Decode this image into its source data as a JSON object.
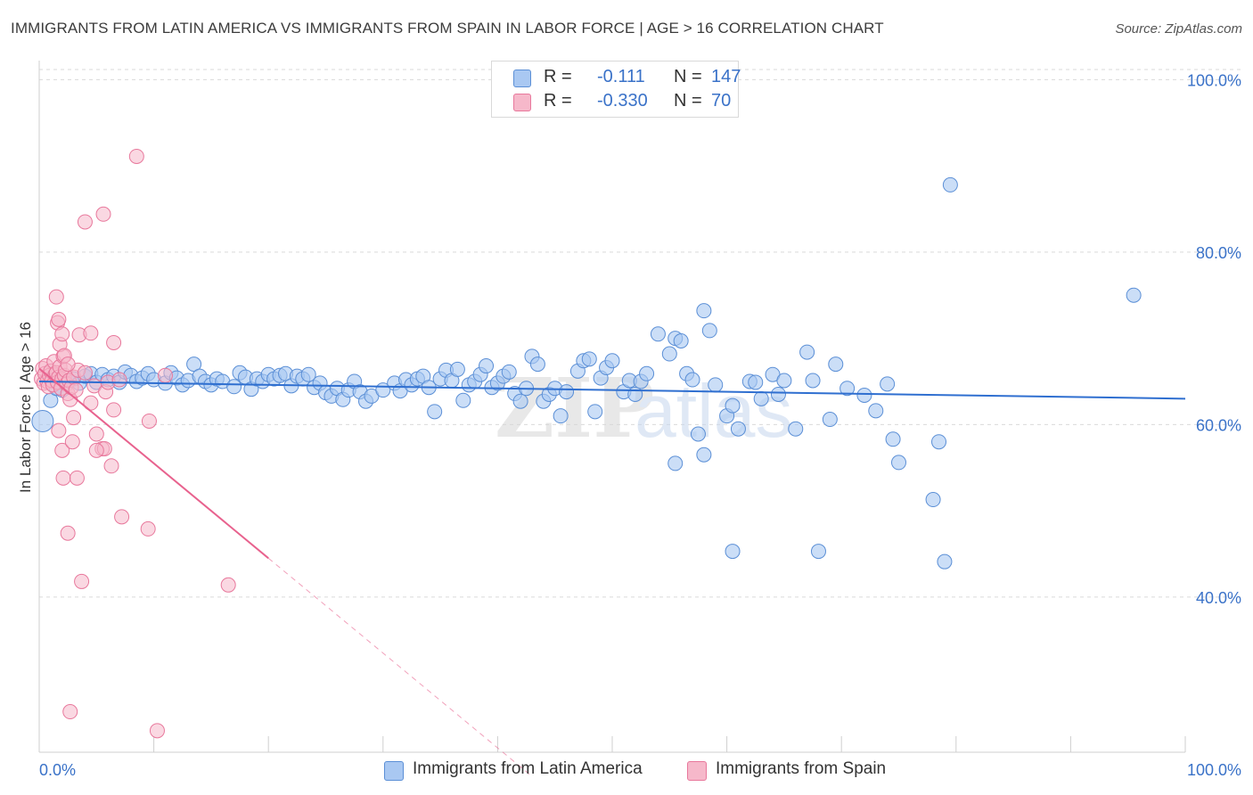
{
  "title": "IMMIGRANTS FROM LATIN AMERICA VS IMMIGRANTS FROM SPAIN IN LABOR FORCE | AGE > 16 CORRELATION CHART",
  "source": "Source: ZipAtlas.com",
  "watermark": {
    "zip": "ZIP",
    "atlas": "atlas"
  },
  "legend_top": {
    "rows": [
      {
        "r_label": "R =",
        "r_value": "-0.111",
        "n_label": "N =",
        "n_value": "147",
        "color": "#a9c8f2"
      },
      {
        "r_label": "R =",
        "r_value": "-0.330",
        "n_label": "N =",
        "n_value": "70",
        "color": "#f6b8ca"
      }
    ]
  },
  "legend_bottom": {
    "items": [
      {
        "label": "Immigrants from Latin America",
        "color": "#a9c8f2"
      },
      {
        "label": "Immigrants from Spain",
        "color": "#f6b8ca"
      }
    ]
  },
  "colors": {
    "blue_fill": "#a9c8f2",
    "blue_stroke": "#5b8fd6",
    "blue_line": "#2f6fd0",
    "pink_fill": "#f6b8ca",
    "pink_stroke": "#e8789c",
    "pink_line": "#e8628e",
    "grid": "#d9d9d9",
    "axis_text": "#3a72c8"
  },
  "chart_data": {
    "type": "scatter",
    "ylabel": "In Labor Force | Age > 16",
    "xlabel": "",
    "x_ticks": [
      "0.0%",
      "100.0%"
    ],
    "y_ticks": [
      "100.0%",
      "80.0%",
      "60.0%",
      "40.0%"
    ],
    "xlim": [
      0,
      100
    ],
    "ylim": [
      22,
      102
    ],
    "grid": "horizontal dashed",
    "series": [
      {
        "name": "Immigrants from Latin America",
        "trend": {
          "x0": 0,
          "y0": 65.0,
          "x1": 100,
          "y1": 63.0
        },
        "points": [
          [
            0.3,
            60.4
          ],
          [
            1.0,
            62.8
          ],
          [
            1.5,
            64.2
          ],
          [
            2.0,
            64.0
          ],
          [
            2.5,
            65.1
          ],
          [
            3.0,
            65.3
          ],
          [
            3.5,
            64.8
          ],
          [
            4.0,
            65.6
          ],
          [
            4.5,
            65.9
          ],
          [
            5.0,
            64.9
          ],
          [
            5.5,
            65.8
          ],
          [
            6.0,
            65.2
          ],
          [
            6.5,
            65.6
          ],
          [
            7.0,
            64.9
          ],
          [
            7.5,
            66.1
          ],
          [
            8.0,
            65.7
          ],
          [
            8.5,
            65.0
          ],
          [
            9.0,
            65.4
          ],
          [
            9.5,
            65.9
          ],
          [
            10.0,
            65.2
          ],
          [
            11.0,
            64.8
          ],
          [
            11.5,
            66.0
          ],
          [
            12.0,
            65.4
          ],
          [
            12.5,
            64.6
          ],
          [
            13.0,
            65.1
          ],
          [
            13.5,
            67.0
          ],
          [
            14.0,
            65.6
          ],
          [
            14.5,
            65.0
          ],
          [
            15.0,
            64.6
          ],
          [
            15.5,
            65.3
          ],
          [
            16.0,
            65.0
          ],
          [
            17.0,
            64.4
          ],
          [
            17.5,
            66.0
          ],
          [
            18.0,
            65.5
          ],
          [
            18.5,
            64.1
          ],
          [
            19.0,
            65.3
          ],
          [
            19.5,
            65.0
          ],
          [
            20.0,
            65.8
          ],
          [
            20.5,
            65.3
          ],
          [
            21.0,
            65.7
          ],
          [
            21.5,
            65.9
          ],
          [
            22.0,
            64.5
          ],
          [
            22.5,
            65.6
          ],
          [
            23.0,
            65.3
          ],
          [
            23.5,
            65.8
          ],
          [
            24.0,
            64.3
          ],
          [
            24.5,
            64.8
          ],
          [
            25.0,
            63.7
          ],
          [
            25.5,
            63.3
          ],
          [
            26.0,
            64.2
          ],
          [
            26.5,
            62.9
          ],
          [
            27.0,
            64.0
          ],
          [
            27.5,
            65.0
          ],
          [
            28.0,
            63.8
          ],
          [
            28.5,
            62.7
          ],
          [
            29.0,
            63.3
          ],
          [
            30.0,
            64.0
          ],
          [
            31.0,
            64.8
          ],
          [
            31.5,
            63.9
          ],
          [
            32.0,
            65.2
          ],
          [
            32.5,
            64.6
          ],
          [
            33.0,
            65.3
          ],
          [
            33.5,
            65.6
          ],
          [
            34.0,
            64.3
          ],
          [
            34.5,
            61.5
          ],
          [
            35.0,
            65.3
          ],
          [
            35.5,
            66.3
          ],
          [
            36.0,
            65.1
          ],
          [
            36.5,
            66.4
          ],
          [
            37.0,
            62.8
          ],
          [
            37.5,
            64.6
          ],
          [
            38.0,
            65.0
          ],
          [
            38.5,
            65.8
          ],
          [
            39.0,
            66.8
          ],
          [
            39.5,
            64.3
          ],
          [
            40.0,
            64.8
          ],
          [
            40.5,
            65.6
          ],
          [
            41.0,
            66.1
          ],
          [
            41.5,
            63.6
          ],
          [
            42.0,
            62.7
          ],
          [
            42.5,
            64.2
          ],
          [
            43.0,
            67.9
          ],
          [
            43.5,
            67.0
          ],
          [
            44.0,
            62.7
          ],
          [
            44.5,
            63.5
          ],
          [
            45.0,
            64.2
          ],
          [
            45.5,
            61.0
          ],
          [
            46.0,
            63.8
          ],
          [
            47.0,
            66.2
          ],
          [
            47.5,
            67.4
          ],
          [
            48.0,
            67.6
          ],
          [
            48.5,
            61.5
          ],
          [
            49.0,
            65.4
          ],
          [
            49.5,
            66.6
          ],
          [
            50.0,
            67.4
          ],
          [
            51.0,
            63.8
          ],
          [
            51.5,
            65.1
          ],
          [
            52.0,
            63.5
          ],
          [
            52.5,
            65.0
          ],
          [
            53.0,
            65.9
          ],
          [
            54.0,
            70.5
          ],
          [
            55.0,
            68.2
          ],
          [
            55.5,
            70.0
          ],
          [
            56.0,
            69.7
          ],
          [
            56.5,
            65.9
          ],
          [
            57.0,
            65.2
          ],
          [
            57.5,
            58.9
          ],
          [
            58.0,
            73.2
          ],
          [
            58.5,
            70.9
          ],
          [
            59.0,
            64.6
          ],
          [
            60.0,
            61.0
          ],
          [
            60.5,
            62.2
          ],
          [
            61.0,
            59.5
          ],
          [
            62.0,
            65.0
          ],
          [
            62.5,
            64.9
          ],
          [
            63.0,
            63.0
          ],
          [
            64.0,
            65.8
          ],
          [
            64.5,
            63.5
          ],
          [
            65.0,
            65.1
          ],
          [
            66.0,
            59.5
          ],
          [
            67.0,
            68.4
          ],
          [
            67.5,
            65.1
          ],
          [
            69.0,
            60.6
          ],
          [
            69.5,
            67.0
          ],
          [
            70.5,
            64.2
          ],
          [
            72.0,
            63.4
          ],
          [
            73.0,
            61.6
          ],
          [
            74.0,
            64.7
          ],
          [
            74.5,
            58.3
          ],
          [
            75.0,
            55.6
          ],
          [
            78.0,
            51.3
          ],
          [
            78.5,
            58.0
          ],
          [
            79.0,
            44.1
          ],
          [
            79.5,
            87.8
          ],
          [
            60.5,
            45.3
          ],
          [
            68.0,
            45.3
          ],
          [
            95.5,
            75.0
          ],
          [
            58.0,
            56.5
          ],
          [
            55.5,
            55.5
          ]
        ]
      },
      {
        "name": "Immigrants from Spain",
        "trend": {
          "x0": 0,
          "y0": 66.5,
          "x1": 20,
          "y1": 44.5,
          "dash_to_x": 43
        },
        "points": [
          [
            0.2,
            65.3
          ],
          [
            0.3,
            66.5
          ],
          [
            0.4,
            64.8
          ],
          [
            0.5,
            65.9
          ],
          [
            0.6,
            66.8
          ],
          [
            0.7,
            65.0
          ],
          [
            0.8,
            64.4
          ],
          [
            0.9,
            65.7
          ],
          [
            1.0,
            66.2
          ],
          [
            1.1,
            65.1
          ],
          [
            1.2,
            64.6
          ],
          [
            1.3,
            67.3
          ],
          [
            1.4,
            65.8
          ],
          [
            1.5,
            66.0
          ],
          [
            1.6,
            64.9
          ],
          [
            1.7,
            65.5
          ],
          [
            1.8,
            66.7
          ],
          [
            1.9,
            64.2
          ],
          [
            2.0,
            65.3
          ],
          [
            2.1,
            67.9
          ],
          [
            2.2,
            65.7
          ],
          [
            2.3,
            66.3
          ],
          [
            2.4,
            64.7
          ],
          [
            2.5,
            63.6
          ],
          [
            2.6,
            65.1
          ],
          [
            2.7,
            62.9
          ],
          [
            2.8,
            64.3
          ],
          [
            3.0,
            65.5
          ],
          [
            3.2,
            64.0
          ],
          [
            3.4,
            66.3
          ],
          [
            1.5,
            74.8
          ],
          [
            1.6,
            71.8
          ],
          [
            1.7,
            72.2
          ],
          [
            1.8,
            69.3
          ],
          [
            2.0,
            70.5
          ],
          [
            2.2,
            68.0
          ],
          [
            2.5,
            67.0
          ],
          [
            3.5,
            70.4
          ],
          [
            4.5,
            70.6
          ],
          [
            6.5,
            69.5
          ],
          [
            4.0,
            83.5
          ],
          [
            5.6,
            84.4
          ],
          [
            8.5,
            91.1
          ],
          [
            1.7,
            59.3
          ],
          [
            2.0,
            57.0
          ],
          [
            2.1,
            53.8
          ],
          [
            2.5,
            47.4
          ],
          [
            2.9,
            58.0
          ],
          [
            3.0,
            60.8
          ],
          [
            3.3,
            53.8
          ],
          [
            3.7,
            41.8
          ],
          [
            5.0,
            58.9
          ],
          [
            5.5,
            57.2
          ],
          [
            5.7,
            57.2
          ],
          [
            6.3,
            55.2
          ],
          [
            7.2,
            49.3
          ],
          [
            9.5,
            47.9
          ],
          [
            9.6,
            60.4
          ],
          [
            16.5,
            41.4
          ],
          [
            2.7,
            26.7
          ],
          [
            10.3,
            24.5
          ],
          [
            5.0,
            57.0
          ],
          [
            4.8,
            64.5
          ],
          [
            4.5,
            62.5
          ],
          [
            4.0,
            66.0
          ],
          [
            5.8,
            63.8
          ],
          [
            6.5,
            61.7
          ],
          [
            6.0,
            64.9
          ],
          [
            11.0,
            65.7
          ],
          [
            7.0,
            65.2
          ]
        ]
      }
    ]
  }
}
